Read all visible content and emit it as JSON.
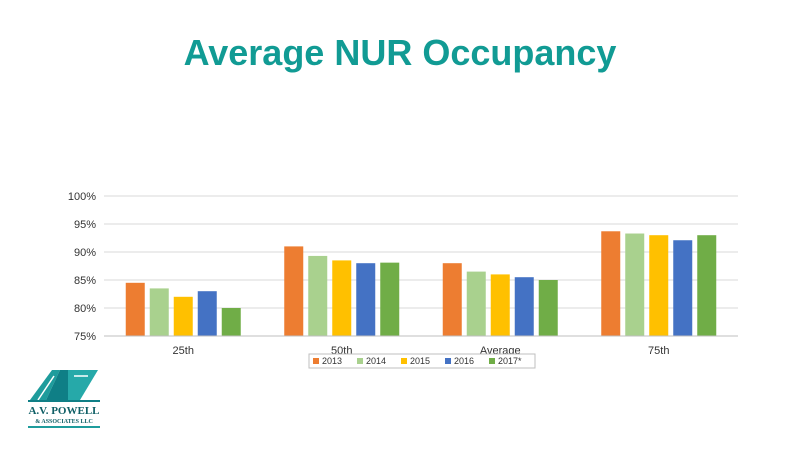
{
  "slide": {
    "title": "Average NUR Occupancy"
  },
  "chart_data": {
    "type": "bar",
    "categories": [
      "25th",
      "50th",
      "Average",
      "75th"
    ],
    "series": [
      {
        "name": "2013",
        "values": [
          84.5,
          91.0,
          88.0,
          93.7
        ],
        "color": "#ed7d31"
      },
      {
        "name": "2014",
        "values": [
          83.5,
          89.3,
          86.5,
          93.3
        ],
        "color": "#a9d18e"
      },
      {
        "name": "2015",
        "values": [
          82.0,
          88.5,
          86.0,
          93.0
        ],
        "color": "#ffc000"
      },
      {
        "name": "2016",
        "values": [
          83.0,
          88.0,
          85.5,
          92.1
        ],
        "color": "#4472c4"
      },
      {
        "name": "2017*",
        "values": [
          80.0,
          88.1,
          85.0,
          93.0
        ],
        "color": "#70ad47"
      }
    ],
    "ylim": [
      75,
      100
    ],
    "yticks": [
      75,
      80,
      85,
      90,
      95,
      100
    ],
    "y_tick_format": "%",
    "grid": true,
    "legend_position": "bottom"
  },
  "logo": {
    "text_line1": "A.V. POWELL",
    "text_line2": "& ASSOCIATES LLC",
    "icon": "av-powell-logo-icon"
  }
}
